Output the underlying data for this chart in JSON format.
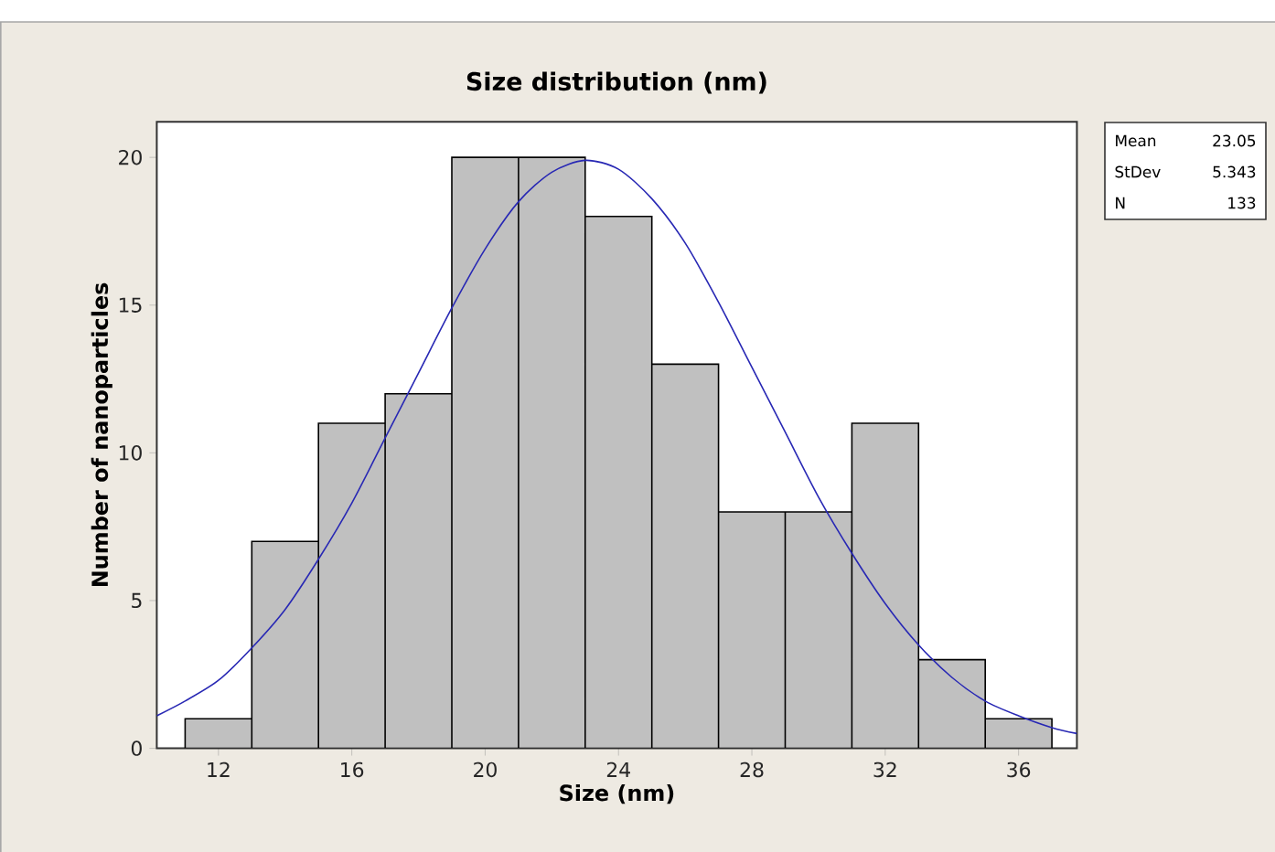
{
  "chart_data": {
    "type": "histogram",
    "title": "Size distribution (nm)",
    "xlabel": "Size (nm)",
    "ylabel": "Number of nanoparticles",
    "bins": [
      11,
      13,
      15,
      17,
      19,
      21,
      23,
      25,
      27,
      29,
      31,
      33,
      35,
      37
    ],
    "values": [
      1,
      7,
      11,
      12,
      20,
      20,
      18,
      13,
      8,
      8,
      11,
      3,
      1
    ],
    "color": "#c0c0c0",
    "series": [
      {
        "type": "line",
        "color": "#2828b4",
        "x": [
          10.15,
          11,
          12,
          13,
          14,
          15,
          16,
          17,
          18,
          19,
          20,
          21,
          22,
          23,
          24,
          25,
          26,
          27,
          28,
          29,
          30,
          31,
          32,
          33,
          34,
          35,
          36,
          37,
          37.75
        ],
        "values": [
          1.1,
          1.6,
          2.3,
          3.4,
          4.7,
          6.4,
          8.3,
          10.5,
          12.7,
          14.9,
          16.9,
          18.5,
          19.5,
          19.9,
          19.6,
          18.6,
          17.1,
          15.1,
          12.9,
          10.7,
          8.5,
          6.6,
          4.9,
          3.5,
          2.4,
          1.6,
          1.1,
          0.7,
          0.5
        ]
      }
    ],
    "xlim": [
      10.15,
      37.75
    ],
    "ylim": [
      0,
      21.2
    ],
    "xticks": [
      12,
      16,
      20,
      24,
      28,
      32,
      36
    ],
    "yticks": [
      0,
      5,
      10,
      15,
      20
    ],
    "grid": false,
    "annotations": [
      "Mean",
      "23.05",
      "StDev",
      "5.343",
      "N",
      "133"
    ]
  }
}
